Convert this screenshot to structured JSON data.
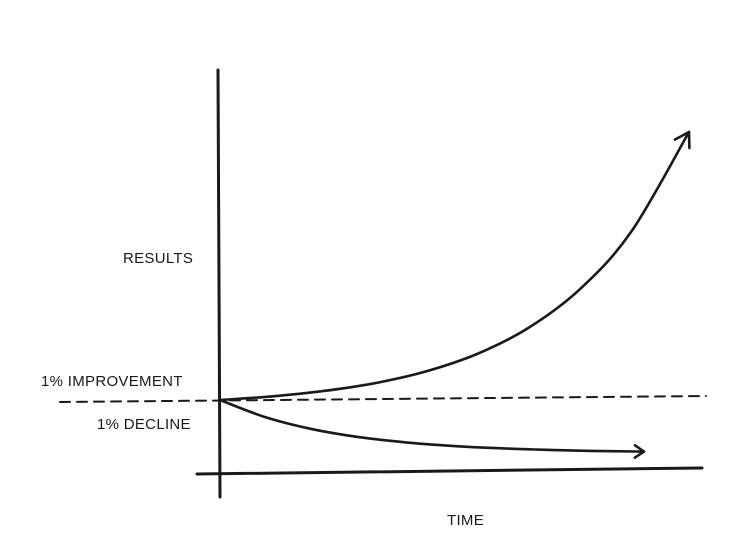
{
  "chart_data": {
    "type": "line",
    "ylabel": "RESULTS",
    "xlabel": "TIME",
    "baseline_style": "dashed",
    "annotations": {
      "above_baseline": "1% IMPROVEMENT",
      "below_baseline": "1% DECLINE"
    },
    "grid": false,
    "legend": "none",
    "ink_color": "#1a1a1a",
    "series": [
      {
        "label": "1% IMPROVEMENT",
        "rate": 0.01,
        "x": [
          0,
          40,
          80,
          120,
          160,
          200,
          240,
          280,
          320,
          365
        ],
        "y": [
          1,
          1.49,
          2.22,
          3.3,
          4.91,
          7.32,
          10.9,
          16.2,
          24.1,
          37.8
        ]
      },
      {
        "label": "1% DECLINE",
        "rate": -0.01,
        "x": [
          0,
          40,
          80,
          120,
          160,
          200,
          240,
          280,
          320,
          365
        ],
        "y": [
          1,
          0.669,
          0.448,
          0.299,
          0.2,
          0.134,
          0.09,
          0.06,
          0.04,
          0.026
        ]
      }
    ]
  }
}
